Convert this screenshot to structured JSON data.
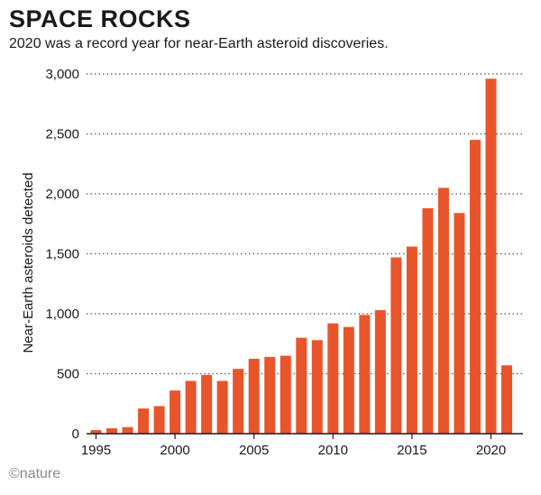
{
  "header": {
    "title": "SPACE ROCKS",
    "subtitle": "2020 was a record year for near-Earth asteroid discoveries."
  },
  "footer": {
    "credit": "©nature"
  },
  "colors": {
    "bar": "#e8552a",
    "text": "#1a1a1a",
    "grid": "#555555",
    "credit": "#8a8a8a"
  },
  "chart_data": {
    "type": "bar",
    "title": "SPACE ROCKS",
    "subtitle": "2020 was a record year for near-Earth asteroid discoveries.",
    "xlabel": "",
    "ylabel": "Near-Earth asteroids detected",
    "categories": [
      1995,
      1996,
      1997,
      1998,
      1999,
      2000,
      2001,
      2002,
      2003,
      2004,
      2005,
      2006,
      2007,
      2008,
      2009,
      2010,
      2011,
      2012,
      2013,
      2014,
      2015,
      2016,
      2017,
      2018,
      2019,
      2020,
      2021
    ],
    "values": [
      30,
      45,
      55,
      210,
      230,
      360,
      440,
      490,
      440,
      540,
      625,
      640,
      650,
      800,
      780,
      920,
      890,
      990,
      1030,
      1470,
      1560,
      1880,
      2050,
      1840,
      2450,
      2960,
      570
    ],
    "x_tick_labels": [
      "1995",
      "2000",
      "2005",
      "2010",
      "2015",
      "2020"
    ],
    "y_ticks": [
      0,
      500,
      1000,
      1500,
      2000,
      2500,
      3000
    ],
    "y_tick_labels": [
      "0",
      "500",
      "1,000",
      "1,500",
      "2,000",
      "2,500",
      "3,000"
    ],
    "ylim": [
      0,
      3000
    ],
    "grid": "horizontal dotted",
    "legend": "none"
  }
}
